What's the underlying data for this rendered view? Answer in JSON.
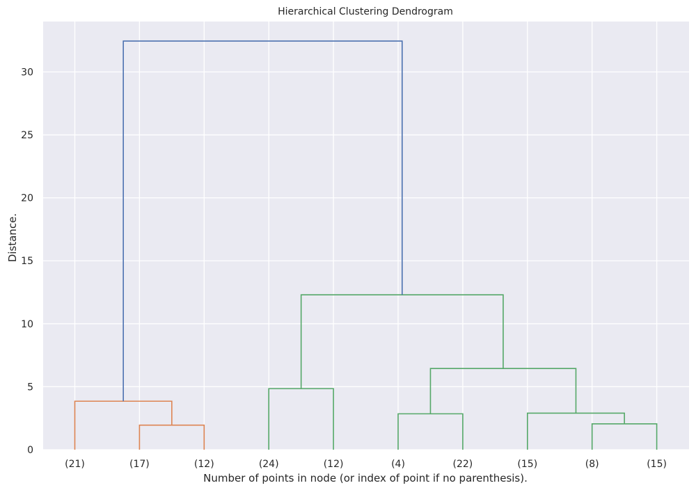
{
  "chart_data": {
    "type": "dendrogram",
    "title": "Hierarchical Clustering Dendrogram",
    "xlabel": "Number of points in node (or index of point if no parenthesis).",
    "ylabel": "Distance.",
    "ylim": [
      0,
      34
    ],
    "yticks": [
      0,
      5,
      10,
      15,
      20,
      25,
      30
    ],
    "grid": true,
    "background": "#eaeaf2",
    "grid_color": "#ffffff",
    "leaves": [
      "(21)",
      "(17)",
      "(12)",
      "(24)",
      "(12)",
      "(4)",
      "(22)",
      "(15)",
      "(8)",
      "(15)"
    ],
    "links": [
      {
        "left": 1,
        "right": 2,
        "height": 1.95,
        "left_h": 0,
        "right_h": 0,
        "color": "#dd8452"
      },
      {
        "left": 0,
        "right": 1.5,
        "height": 3.85,
        "left_h": 0,
        "right_h": 1.95,
        "color": "#dd8452"
      },
      {
        "left": 3,
        "right": 4,
        "height": 4.85,
        "left_h": 0,
        "right_h": 0,
        "color": "#55a868"
      },
      {
        "left": 5,
        "right": 6,
        "height": 2.85,
        "left_h": 0,
        "right_h": 0,
        "color": "#55a868"
      },
      {
        "left": 8,
        "right": 9,
        "height": 2.05,
        "left_h": 0,
        "right_h": 0,
        "color": "#55a868"
      },
      {
        "left": 7,
        "right": 8.5,
        "height": 2.9,
        "left_h": 0,
        "right_h": 2.05,
        "color": "#55a868"
      },
      {
        "left": 5.5,
        "right": 7.75,
        "height": 6.45,
        "left_h": 2.85,
        "right_h": 2.9,
        "color": "#55a868"
      },
      {
        "left": 3.5,
        "right": 6.625,
        "height": 12.3,
        "left_h": 4.85,
        "right_h": 6.45,
        "color": "#55a868"
      },
      {
        "left": 0.75,
        "right": 5.0625,
        "height": 32.45,
        "left_h": 3.85,
        "right_h": 12.3,
        "color": "#4c72b0"
      }
    ]
  }
}
